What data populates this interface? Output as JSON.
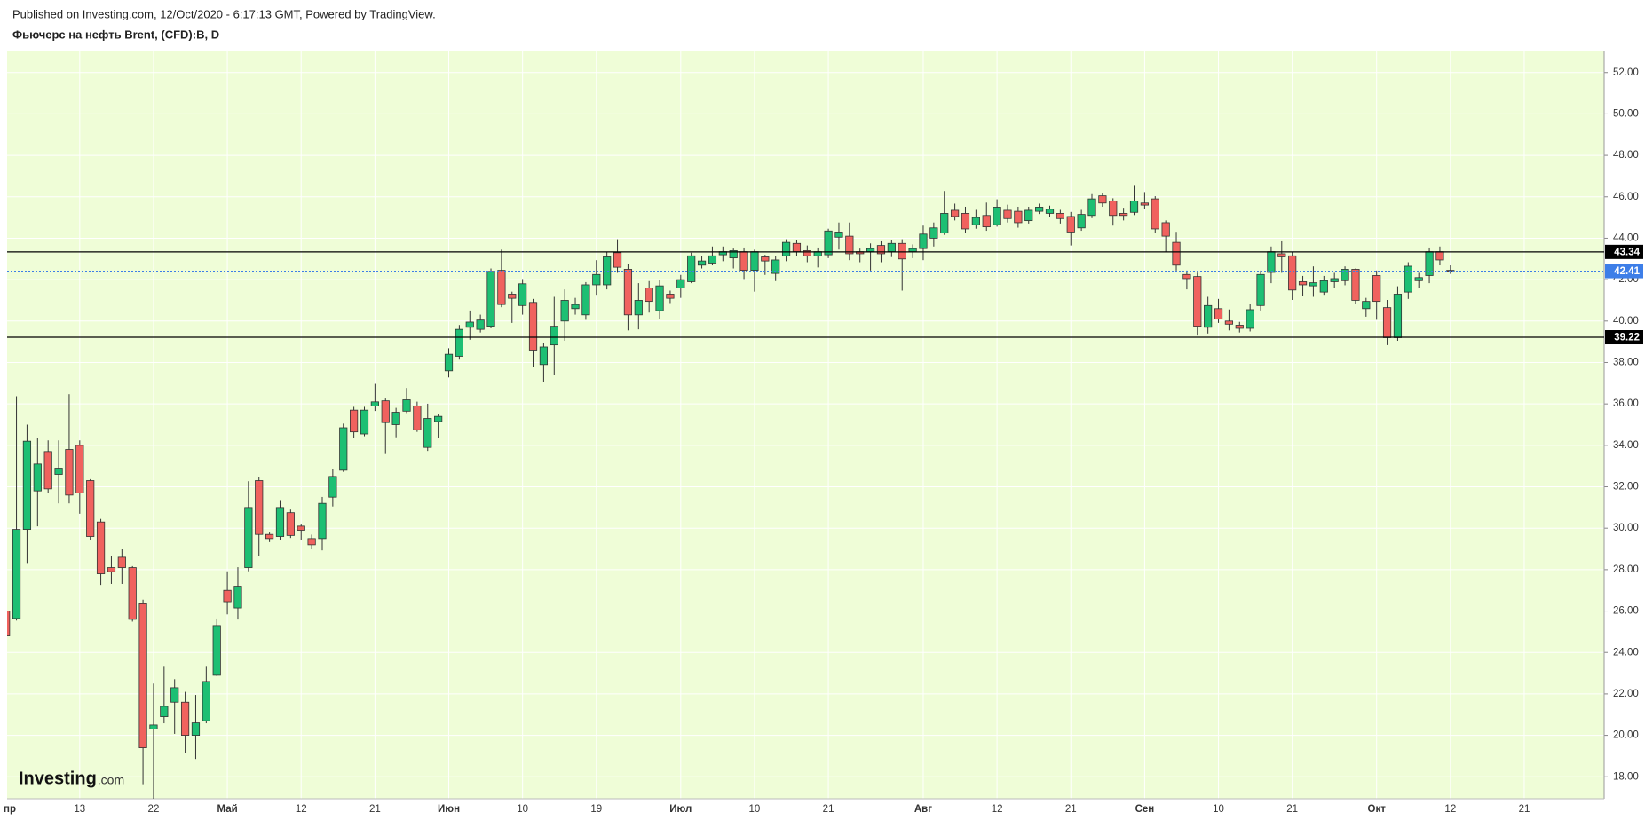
{
  "chart_data": {
    "type": "candlestick",
    "published": "Published on Investing.com, 12/Oct/2020 - 6:17:13 GMT, Powered by TradingView.",
    "title": "Фьючерс на нефть Brent, (CFD):B, D",
    "watermark": {
      "main": "Investing",
      "suffix": ".com"
    },
    "up_color": "#1dbf73",
    "down_color": "#f0625e",
    "background": "#effdd7",
    "grid": true,
    "categories": [
      "пр",
      null,
      null,
      null,
      null,
      null,
      null,
      null,
      "13",
      null,
      null,
      null,
      null,
      null,
      null,
      "22",
      null,
      null,
      null,
      null,
      null,
      null,
      "Май",
      null,
      null,
      null,
      null,
      null,
      null,
      "12",
      null,
      null,
      null,
      null,
      null,
      null,
      "21",
      null,
      null,
      null,
      null,
      null,
      null,
      "Июн",
      null,
      null,
      null,
      null,
      null,
      null,
      "10",
      null,
      null,
      null,
      null,
      null,
      null,
      "19",
      null,
      null,
      null,
      null,
      null,
      null,
      null,
      "Июл",
      null,
      null,
      null,
      null,
      null,
      null,
      "10",
      null,
      null,
      null,
      null,
      null,
      null,
      "21",
      null,
      null,
      null,
      null,
      null,
      null,
      null,
      null,
      "Авг",
      null,
      null,
      null,
      null,
      null,
      null,
      "12",
      null,
      null,
      null,
      null,
      null,
      null,
      "21",
      null,
      null,
      null,
      null,
      null,
      null,
      "Сен",
      null,
      null,
      null,
      null,
      null,
      null,
      "10",
      null,
      null,
      null,
      null,
      null,
      null,
      "21",
      null,
      null,
      null,
      null,
      null,
      null,
      null,
      "Окт",
      null,
      null,
      null,
      null,
      null,
      null,
      "12",
      null,
      null,
      null,
      null,
      null,
      null,
      "21"
    ],
    "open": [
      null,
      26.0,
      25.64,
      29.94,
      31.8,
      33.7,
      32.6,
      33.8,
      34.0,
      32.3,
      30.3,
      28.1,
      28.6,
      28.1,
      26.35,
      20.3,
      20.9,
      21.6,
      21.6,
      20.0,
      20.7,
      22.9,
      27.0,
      26.15,
      28.1,
      32.3,
      29.7,
      29.6,
      30.75,
      30.1,
      29.5,
      29.5,
      31.5,
      32.8,
      35.7,
      34.55,
      35.9,
      36.15,
      35.0,
      35.65,
      35.9,
      33.9,
      35.15,
      37.6,
      38.3,
      39.7,
      39.6,
      39.75,
      42.45,
      41.3,
      40.75,
      40.9,
      37.9,
      38.85,
      40.0,
      40.6,
      40.3,
      41.75,
      41.75,
      43.3,
      42.5,
      40.3,
      41.6,
      40.5,
      41.3,
      41.6,
      41.9,
      42.7,
      42.8,
      43.2,
      43.05,
      43.35,
      42.45,
      43.1,
      42.3,
      43.15,
      43.75,
      43.4,
      43.15,
      43.2,
      44.05,
      44.1,
      43.35,
      43.35,
      43.65,
      43.35,
      43.75,
      43.35,
      43.5,
      44.0,
      44.25,
      45.35,
      45.2,
      44.65,
      45.1,
      44.65,
      45.35,
      45.3,
      44.85,
      45.3,
      45.2,
      45.2,
      45.05,
      44.5,
      45.1,
      46.05,
      45.8,
      45.2,
      45.25,
      45.7,
      45.9,
      44.75,
      43.8,
      42.25,
      42.15,
      39.7,
      40.6,
      40.0,
      39.8,
      39.65,
      40.75,
      42.35,
      43.25,
      43.15,
      41.9,
      41.7,
      41.4,
      41.9,
      41.95,
      42.5,
      40.6,
      42.2,
      40.65,
      39.2,
      41.4,
      41.95,
      42.2,
      43.35,
      42.45,
      null,
      null,
      null,
      null,
      null,
      null,
      null
    ],
    "high": [
      null,
      26.1,
      36.37,
      35.0,
      34.34,
      34.24,
      34.24,
      36.47,
      34.24,
      32.37,
      30.45,
      28.67,
      28.98,
      28.17,
      26.55,
      22.5,
      23.31,
      22.71,
      22.1,
      21.95,
      23.31,
      25.64,
      27.92,
      28.12,
      32.27,
      32.47,
      29.79,
      31.36,
      30.9,
      30.19,
      29.69,
      31.51,
      32.87,
      35.05,
      35.86,
      35.86,
      36.97,
      36.26,
      35.81,
      36.77,
      36.11,
      36.01,
      35.5,
      38.69,
      39.81,
      40.51,
      40.31,
      42.54,
      43.45,
      41.42,
      42.03,
      41.07,
      38.94,
      41.17,
      41.53,
      41.12,
      41.88,
      42.94,
      43.35,
      43.95,
      42.74,
      41.83,
      41.93,
      41.98,
      41.47,
      42.23,
      43.3,
      43.15,
      43.6,
      43.6,
      43.5,
      43.55,
      43.45,
      43.2,
      43.15,
      43.95,
      43.9,
      43.65,
      43.55,
      44.46,
      44.76,
      44.76,
      43.5,
      43.75,
      43.85,
      43.9,
      43.95,
      43.7,
      44.61,
      44.76,
      46.28,
      45.67,
      45.52,
      45.37,
      45.72,
      45.88,
      45.62,
      45.52,
      45.52,
      45.67,
      45.57,
      45.37,
      45.27,
      45.37,
      46.13,
      46.18,
      45.93,
      45.47,
      46.53,
      46.23,
      46.03,
      44.86,
      44.31,
      42.44,
      42.34,
      41.17,
      41.07,
      40.56,
      39.96,
      40.82,
      42.44,
      43.6,
      43.85,
      43.35,
      42.18,
      42.64,
      42.18,
      42.33,
      42.64,
      42.54,
      41.12,
      42.44,
      41.02,
      41.68,
      42.84,
      42.33,
      43.55,
      43.6,
      42.69,
      null,
      null,
      null,
      null,
      null,
      null,
      null
    ],
    "low": [
      null,
      24.7,
      25.54,
      28.32,
      30.09,
      31.71,
      31.2,
      31.2,
      30.7,
      29.43,
      27.26,
      27.31,
      27.31,
      25.49,
      17.64,
      16.94,
      20.58,
      20.07,
      19.16,
      18.86,
      20.58,
      22.86,
      25.84,
      25.59,
      27.92,
      28.67,
      29.33,
      29.43,
      29.53,
      29.43,
      28.98,
      28.93,
      31.05,
      32.72,
      34.34,
      34.44,
      35.66,
      33.58,
      34.39,
      35.56,
      34.65,
      33.73,
      34.34,
      37.28,
      38.14,
      39.1,
      39.45,
      39.65,
      40.67,
      39.91,
      40.31,
      37.78,
      37.07,
      37.38,
      39.05,
      40.31,
      40.06,
      41.27,
      41.53,
      42.33,
      39.55,
      39.6,
      40.41,
      40.11,
      40.87,
      41.12,
      41.83,
      42.54,
      42.69,
      42.89,
      42.54,
      42.03,
      41.42,
      42.23,
      41.93,
      42.89,
      43.15,
      42.84,
      42.59,
      43.04,
      43.45,
      42.94,
      42.84,
      42.44,
      42.84,
      43.09,
      41.47,
      43.04,
      42.94,
      43.6,
      44.16,
      44.86,
      44.26,
      44.46,
      44.36,
      44.56,
      44.76,
      44.51,
      44.71,
      45.17,
      45.02,
      44.71,
      43.65,
      44.36,
      44.97,
      45.52,
      44.61,
      44.86,
      45.12,
      45.42,
      44.26,
      43.35,
      42.44,
      41.53,
      39.3,
      39.4,
      39.91,
      39.55,
      39.45,
      39.5,
      40.51,
      41.83,
      42.33,
      41.02,
      41.22,
      41.17,
      41.27,
      41.58,
      41.73,
      40.82,
      40.21,
      40.06,
      38.84,
      39.05,
      41.07,
      41.58,
      41.83,
      42.69,
      42.28,
      null,
      null,
      null,
      null,
      null,
      null,
      null
    ],
    "close": [
      null,
      24.8,
      29.94,
      34.2,
      33.1,
      31.9,
      32.9,
      31.6,
      31.7,
      29.6,
      27.8,
      27.9,
      28.1,
      25.6,
      19.4,
      20.5,
      21.4,
      22.3,
      20.0,
      20.6,
      22.6,
      25.3,
      26.45,
      27.2,
      31.0,
      29.7,
      29.5,
      31.0,
      29.65,
      29.9,
      29.2,
      31.2,
      32.5,
      34.85,
      34.65,
      35.7,
      36.1,
      35.1,
      35.6,
      36.2,
      34.75,
      35.3,
      35.4,
      38.4,
      39.6,
      39.95,
      40.05,
      42.4,
      40.8,
      41.1,
      41.8,
      38.6,
      38.75,
      39.75,
      41.0,
      40.8,
      41.75,
      42.25,
      43.1,
      42.6,
      40.3,
      41.0,
      40.95,
      41.7,
      41.1,
      42.0,
      43.15,
      42.9,
      43.15,
      43.35,
      43.4,
      42.45,
      43.35,
      42.9,
      42.95,
      43.8,
      43.35,
      43.15,
      43.35,
      44.35,
      44.3,
      43.25,
      43.25,
      43.5,
      43.25,
      43.75,
      43.0,
      43.5,
      44.2,
      44.5,
      45.2,
      45.05,
      44.45,
      45.0,
      44.55,
      45.5,
      44.95,
      44.75,
      45.35,
      45.5,
      45.4,
      44.95,
      44.3,
      45.15,
      45.9,
      45.7,
      45.1,
      45.1,
      45.8,
      45.6,
      44.45,
      44.1,
      42.7,
      42.05,
      39.75,
      40.75,
      40.1,
      39.85,
      39.65,
      40.55,
      42.25,
      43.35,
      43.1,
      41.5,
      41.75,
      41.85,
      41.95,
      42.05,
      42.5,
      41.0,
      40.95,
      40.95,
      39.2,
      41.3,
      42.65,
      42.1,
      43.35,
      42.95,
      42.41,
      null,
      null,
      null,
      null,
      null,
      null,
      null
    ],
    "ylim": [
      16.94,
      53.06
    ],
    "yticks": [
      {
        "value": 18,
        "label": "18.00"
      },
      {
        "value": 20,
        "label": "20.00"
      },
      {
        "value": 22,
        "label": "22.00"
      },
      {
        "value": 24,
        "label": "24.00"
      },
      {
        "value": 26,
        "label": "26.00"
      },
      {
        "value": 28,
        "label": "28.00"
      },
      {
        "value": 30,
        "label": "30.00"
      },
      {
        "value": 32,
        "label": "32.00"
      },
      {
        "value": 34,
        "label": "34.00"
      },
      {
        "value": 36,
        "label": "36.00"
      },
      {
        "value": 38,
        "label": "38.00"
      },
      {
        "value": 40,
        "label": "40.00"
      },
      {
        "value": 42,
        "label": "42.00"
      },
      {
        "value": 44,
        "label": "44.00"
      },
      {
        "value": 46,
        "label": "46.00"
      },
      {
        "value": 48,
        "label": "48.00"
      },
      {
        "value": 50,
        "label": "50.00"
      },
      {
        "value": 52,
        "label": "52.00"
      }
    ],
    "hlines": [
      {
        "value": 43.34,
        "color": "#000000"
      },
      {
        "value": 39.22,
        "color": "#000000"
      }
    ],
    "last_price": {
      "value": 42.41,
      "color": "#3d7ee8"
    }
  }
}
